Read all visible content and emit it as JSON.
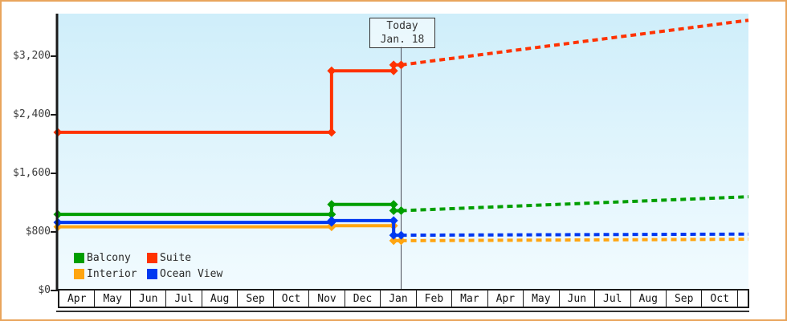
{
  "window": {
    "border_color": "#E9A55C",
    "background": "#FFFFFF"
  },
  "today_box": {
    "line1": "Today",
    "line2": "Jan. 18"
  },
  "chart_data": {
    "type": "line",
    "subtype": "step-price-history-with-projection",
    "title": "",
    "xlabel": "",
    "ylabel": "",
    "grid": false,
    "legend_position": "inside-bottom-left",
    "plot_bg_gradient": [
      "#CFEEFA",
      "#F2FBFF"
    ],
    "ylim": [
      0,
      3780
    ],
    "xlim_months": [
      0,
      19.25
    ],
    "y_ticks": [
      {
        "label": "$0",
        "value": 0
      },
      {
        "label": "$800",
        "value": 800
      },
      {
        "label": "$1,600",
        "value": 1600
      },
      {
        "label": "$2,400",
        "value": 2400
      },
      {
        "label": "$3,200",
        "value": 3200
      }
    ],
    "x_labels": [
      "Apr",
      "May",
      "Jun",
      "Jul",
      "Aug",
      "Sep",
      "Oct",
      "Nov",
      "Dec",
      "Jan",
      "Feb",
      "Mar",
      "Apr",
      "May",
      "Jun",
      "Jul",
      "Aug",
      "Sep",
      "Oct"
    ],
    "today": {
      "month_x": 9.57,
      "label_line1": "Today",
      "label_line2": "Jan. 18"
    },
    "series": [
      {
        "name": "Balcony",
        "color": "#009E00",
        "history": [
          [
            0,
            1040
          ],
          [
            7.63,
            1040
          ],
          [
            7.63,
            1175
          ],
          [
            9.36,
            1175
          ],
          [
            9.36,
            1090
          ],
          [
            9.57,
            1090
          ]
        ],
        "projection": [
          [
            9.57,
            1090
          ],
          [
            19.25,
            1280
          ]
        ]
      },
      {
        "name": "Interior",
        "color": "#FFA511",
        "history": [
          [
            0,
            870
          ],
          [
            7.63,
            870
          ],
          [
            7.63,
            885
          ],
          [
            9.36,
            885
          ],
          [
            9.36,
            680
          ],
          [
            9.57,
            680
          ]
        ],
        "projection": [
          [
            9.57,
            680
          ],
          [
            19.25,
            700
          ]
        ]
      },
      {
        "name": "Ocean View",
        "color": "#0038F0",
        "history": [
          [
            0,
            930
          ],
          [
            7.63,
            930
          ],
          [
            7.63,
            955
          ],
          [
            9.36,
            955
          ],
          [
            9.36,
            755
          ],
          [
            9.57,
            755
          ]
        ],
        "projection": [
          [
            9.57,
            755
          ],
          [
            19.25,
            770
          ]
        ]
      },
      {
        "name": "Suite",
        "color": "#FF3200",
        "history": [
          [
            0,
            2160
          ],
          [
            7.63,
            2160
          ],
          [
            7.63,
            3000
          ],
          [
            9.36,
            3000
          ],
          [
            9.36,
            3080
          ],
          [
            9.57,
            3080
          ]
        ],
        "projection": [
          [
            9.57,
            3080
          ],
          [
            19.25,
            3690
          ]
        ]
      }
    ],
    "legend": [
      {
        "label": "Balcony",
        "color": "#009E00"
      },
      {
        "label": "Suite",
        "color": "#FF3200"
      },
      {
        "label": "Interior",
        "color": "#FFA511"
      },
      {
        "label": "Ocean View",
        "color": "#0038F0"
      }
    ]
  }
}
